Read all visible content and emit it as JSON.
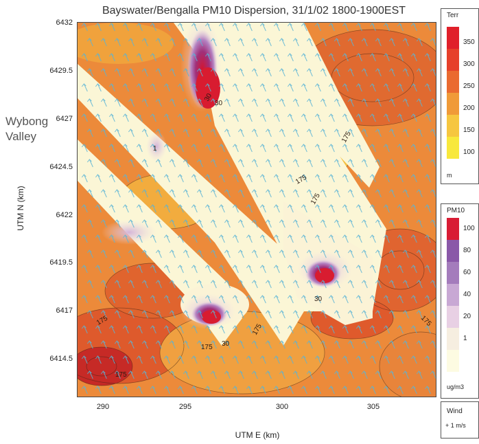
{
  "title": "Bayswater/Bengalla PM10 Dispersion, 31/1/02 1800-1900EST",
  "annotation": [
    "Wybong",
    "Valley"
  ],
  "axes": {
    "xlabel": "UTM E (km)",
    "ylabel": "UTM N (km)",
    "xticks": [
      "290",
      "295",
      "300",
      "305"
    ],
    "yticks": [
      "6432",
      "6429.5",
      "6427",
      "6424.5",
      "6422",
      "6419.5",
      "6417",
      "6414.5"
    ]
  },
  "contour_labels": [
    "30",
    "30",
    "30",
    "30",
    "175",
    "175",
    "175",
    "175",
    "175",
    "175",
    "175",
    "175",
    "1"
  ],
  "legend_terrain": {
    "title": "Terr",
    "unit": "m",
    "levels": [
      "350",
      "300",
      "250",
      "200",
      "150",
      "100"
    ],
    "colors": [
      "#e0202a",
      "#e6402a",
      "#ea6a30",
      "#f09a38",
      "#f6c640",
      "#f8e83c"
    ]
  },
  "legend_pm10": {
    "title": "PM10",
    "unit": "ug/m3",
    "levels": [
      "100",
      "80",
      "60",
      "40",
      "20",
      "1"
    ],
    "colors": [
      "#d81c34",
      "#8a58a8",
      "#a47cbc",
      "#c8a8d4",
      "#e8d0e4",
      "#f6eee0",
      "#fdfbe2"
    ]
  },
  "legend_wind": {
    "title": "Wind",
    "scale": "+ 1 m/s"
  }
}
